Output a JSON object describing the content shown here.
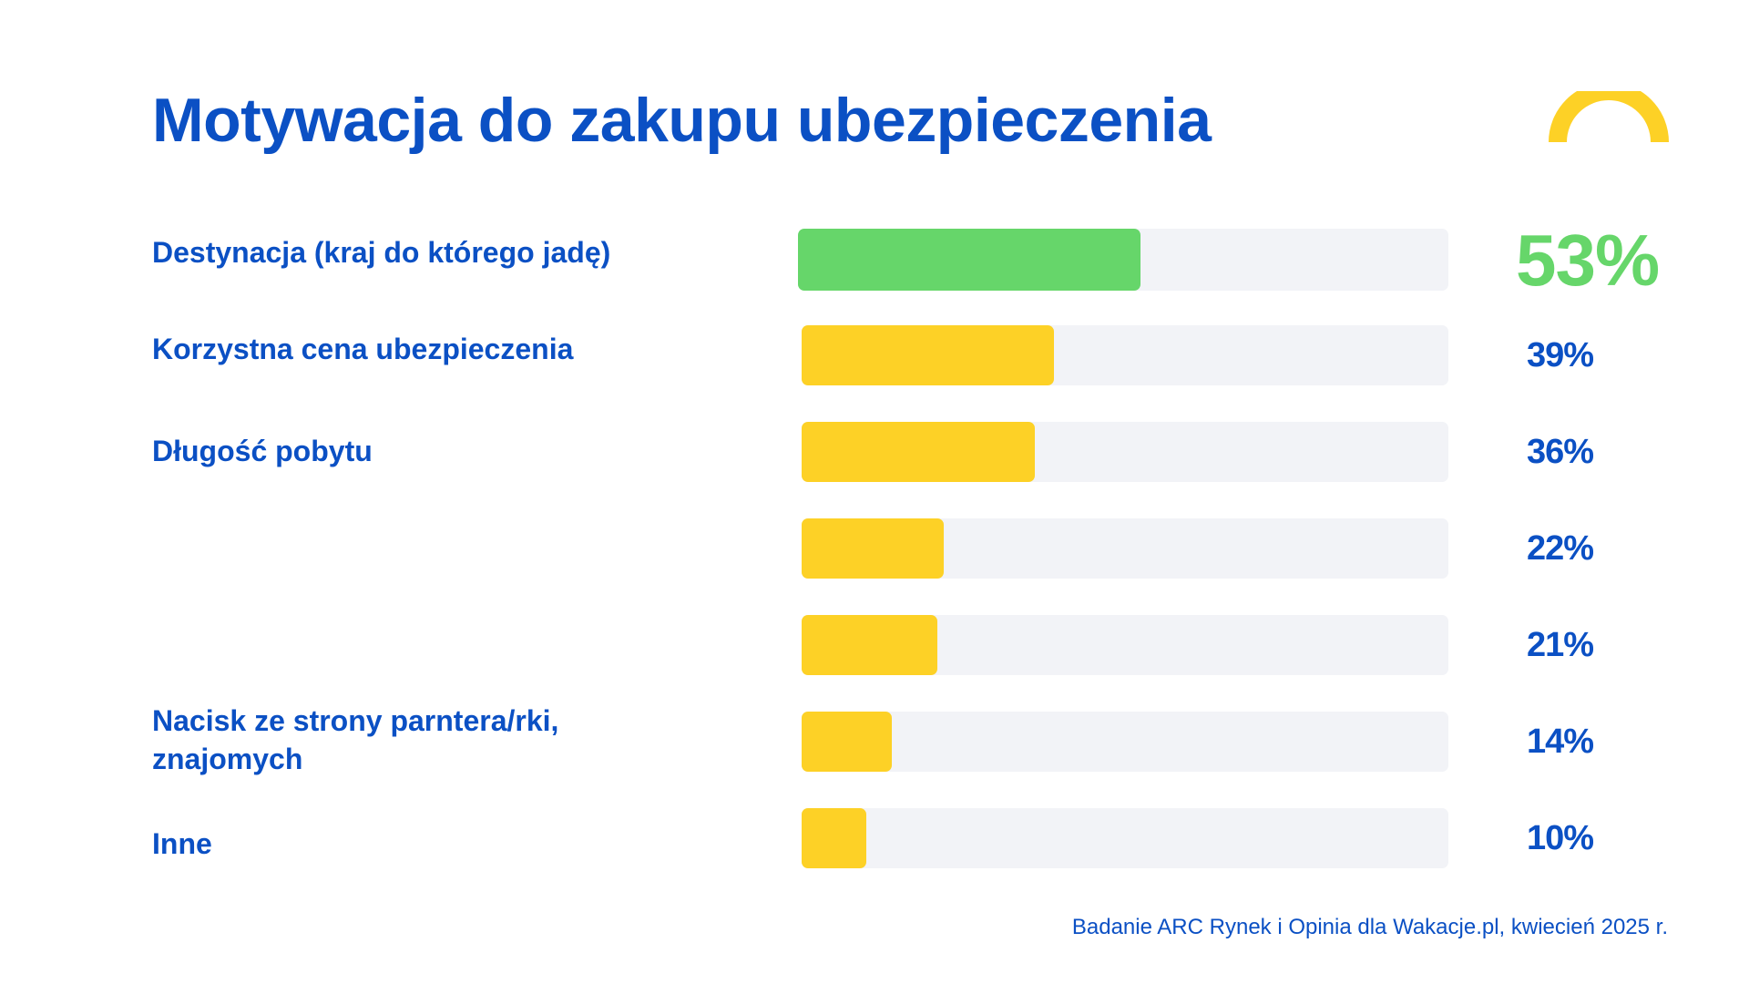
{
  "colors": {
    "accent_blue": "#0b50c4",
    "highlight_green": "#66d66a",
    "bar_yellow": "#fdd126",
    "track_gray": "#f2f3f7",
    "decor_yellow": "#fdd126"
  },
  "decoration": {
    "icon": "yellow-half-arc-icon"
  },
  "source_note": "Badanie ARC Rynek i Opinia dla Wakacje.pl, kwiecień 2025 r.",
  "chart_data": {
    "type": "bar",
    "orientation": "horizontal",
    "title": "Motywacja do zakupu ubezpieczenia",
    "xlabel": "",
    "ylabel": "",
    "xlim": [
      0,
      100
    ],
    "grid": false,
    "legend": "none",
    "categories": [
      "Destynacja (kraj do którego jadę)",
      "Korzystna cena ubezpieczenia",
      "Długość pobytu",
      "",
      "",
      "Nacisk ze strony parntera/rki, znajomych",
      "Inne"
    ],
    "values": [
      53,
      39,
      36,
      22,
      21,
      14,
      10
    ],
    "value_labels": [
      "53%",
      "39%",
      "36%",
      "22%",
      "21%",
      "14%",
      "10%"
    ],
    "highlight_index": 0
  }
}
